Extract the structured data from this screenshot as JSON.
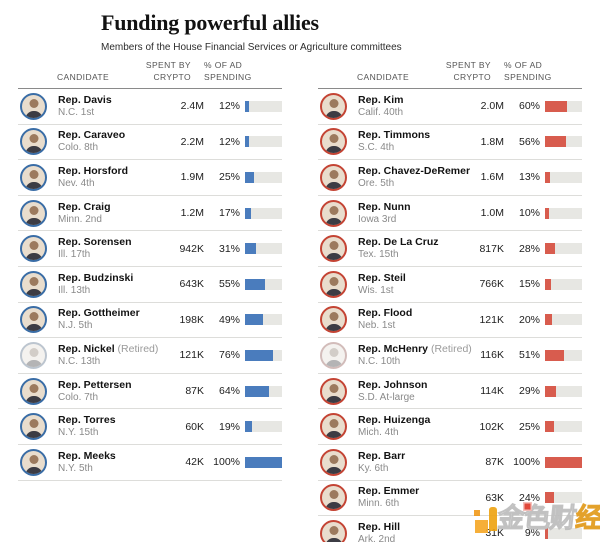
{
  "columns": {
    "candidate": "CANDIDATE",
    "spent_line1": "SPENT BY",
    "spent_line2": "CRYPTO",
    "pct_line1": "% OF AD",
    "pct_line2": "SPENDING"
  },
  "colors": {
    "democrat_bar": "#4a7cbd",
    "democrat_ring": "#3a6da6",
    "republican_bar": "#d85c4e",
    "republican_ring": "#c44434",
    "bar_track": "#e7e7e3"
  },
  "watermark": {
    "text_char1": "金",
    "text_char2": "色",
    "text_char3": "财",
    "text_char4": "经",
    "logo_color": "#f5a623",
    "badge_color": "#df3a2b"
  },
  "chart_data": {
    "type": "bar",
    "title": "Funding powerful allies",
    "subtitle": "Members of the House Financial Services or Agriculture committees",
    "value_unit": "% of ad spending",
    "xlim": [
      0,
      100
    ],
    "legend_position": "none",
    "grid": false,
    "series": [
      {
        "name": "Democrats",
        "color": "#4a7cbd",
        "ring_color": "#3a6da6",
        "rows": [
          {
            "candidate": "Rep. Davis",
            "note": "",
            "district": "N.C. 1st",
            "spent": "2.4M",
            "pct": 12,
            "pct_label": "12%",
            "retired": false
          },
          {
            "candidate": "Rep. Caraveo",
            "note": "",
            "district": "Colo. 8th",
            "spent": "2.2M",
            "pct": 12,
            "pct_label": "12%",
            "retired": false
          },
          {
            "candidate": "Rep. Horsford",
            "note": "",
            "district": "Nev. 4th",
            "spent": "1.9M",
            "pct": 25,
            "pct_label": "25%",
            "retired": false
          },
          {
            "candidate": "Rep. Craig",
            "note": "",
            "district": "Minn. 2nd",
            "spent": "1.2M",
            "pct": 17,
            "pct_label": "17%",
            "retired": false
          },
          {
            "candidate": "Rep. Sorensen",
            "note": "",
            "district": "Ill. 17th",
            "spent": "942K",
            "pct": 31,
            "pct_label": "31%",
            "retired": false
          },
          {
            "candidate": "Rep. Budzinski",
            "note": "",
            "district": "Ill. 13th",
            "spent": "643K",
            "pct": 55,
            "pct_label": "55%",
            "retired": false
          },
          {
            "candidate": "Rep. Gottheimer",
            "note": "",
            "district": "N.J. 5th",
            "spent": "198K",
            "pct": 49,
            "pct_label": "49%",
            "retired": false
          },
          {
            "candidate": "Rep. Nickel",
            "note": "(Retired)",
            "district": "N.C. 13th",
            "spent": "121K",
            "pct": 76,
            "pct_label": "76%",
            "retired": true
          },
          {
            "candidate": "Rep. Pettersen",
            "note": "",
            "district": "Colo. 7th",
            "spent": "87K",
            "pct": 64,
            "pct_label": "64%",
            "retired": false
          },
          {
            "candidate": "Rep. Torres",
            "note": "",
            "district": "N.Y. 15th",
            "spent": "60K",
            "pct": 19,
            "pct_label": "19%",
            "retired": false
          },
          {
            "candidate": "Rep. Meeks",
            "note": "",
            "district": "N.Y. 5th",
            "spent": "42K",
            "pct": 100,
            "pct_label": "100%",
            "retired": false
          }
        ]
      },
      {
        "name": "Republicans",
        "color": "#d85c4e",
        "ring_color": "#c44434",
        "rows": [
          {
            "candidate": "Rep. Kim",
            "note": "",
            "district": "Calif. 40th",
            "spent": "2.0M",
            "pct": 60,
            "pct_label": "60%",
            "retired": false
          },
          {
            "candidate": "Rep. Timmons",
            "note": "",
            "district": "S.C. 4th",
            "spent": "1.8M",
            "pct": 56,
            "pct_label": "56%",
            "retired": false
          },
          {
            "candidate": "Rep. Chavez-DeRemer",
            "note": "",
            "district": "Ore. 5th",
            "spent": "1.6M",
            "pct": 13,
            "pct_label": "13%",
            "retired": false
          },
          {
            "candidate": "Rep. Nunn",
            "note": "",
            "district": "Iowa 3rd",
            "spent": "1.0M",
            "pct": 10,
            "pct_label": "10%",
            "retired": false
          },
          {
            "candidate": "Rep. De La Cruz",
            "note": "",
            "district": "Tex. 15th",
            "spent": "817K",
            "pct": 28,
            "pct_label": "28%",
            "retired": false
          },
          {
            "candidate": "Rep. Steil",
            "note": "",
            "district": "Wis. 1st",
            "spent": "766K",
            "pct": 15,
            "pct_label": "15%",
            "retired": false
          },
          {
            "candidate": "Rep. Flood",
            "note": "",
            "district": "Neb. 1st",
            "spent": "121K",
            "pct": 20,
            "pct_label": "20%",
            "retired": false
          },
          {
            "candidate": "Rep. McHenry",
            "note": "(Retired)",
            "district": "N.C. 10th",
            "spent": "116K",
            "pct": 51,
            "pct_label": "51%",
            "retired": true
          },
          {
            "candidate": "Rep. Johnson",
            "note": "",
            "district": "S.D. At-large",
            "spent": "114K",
            "pct": 29,
            "pct_label": "29%",
            "retired": false
          },
          {
            "candidate": "Rep. Huizenga",
            "note": "",
            "district": "Mich. 4th",
            "spent": "102K",
            "pct": 25,
            "pct_label": "25%",
            "retired": false
          },
          {
            "candidate": "Rep. Barr",
            "note": "",
            "district": "Ky. 6th",
            "spent": "87K",
            "pct": 100,
            "pct_label": "100%",
            "retired": false
          },
          {
            "candidate": "Rep. Emmer",
            "note": "",
            "district": "Minn. 6th",
            "spent": "63K",
            "pct": 24,
            "pct_label": "24%",
            "retired": false
          },
          {
            "candidate": "Rep. Hill",
            "note": "",
            "district": "Ark. 2nd",
            "spent": "31K",
            "pct": 9,
            "pct_label": "9%",
            "retired": false
          }
        ]
      }
    ]
  }
}
